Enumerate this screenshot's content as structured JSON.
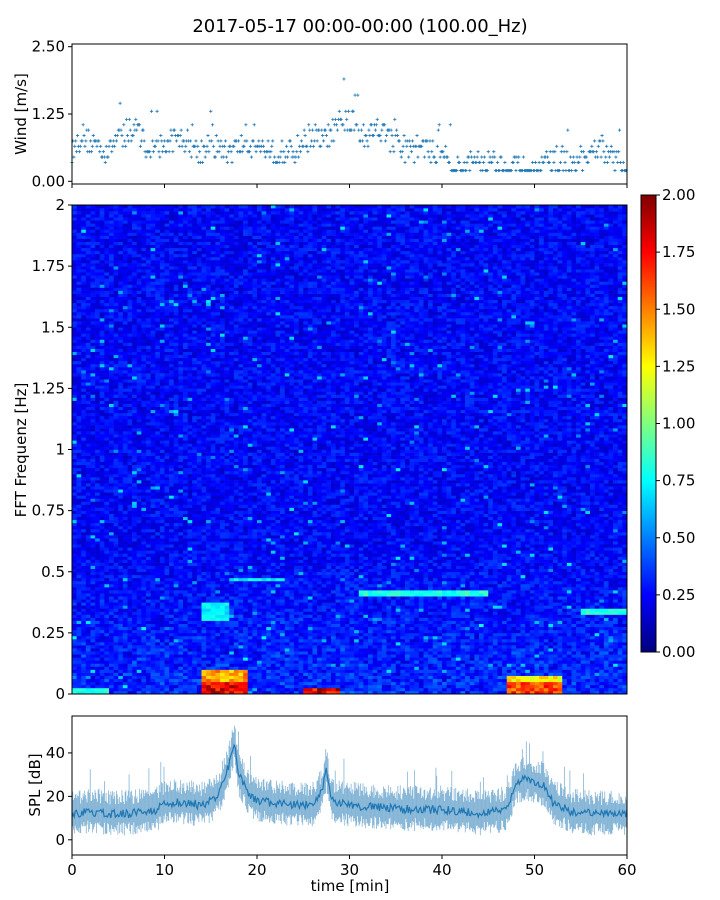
{
  "title": "2017-05-17 00:00-00:00 (100.00_Hz)",
  "colors": {
    "series": "#1f77b4",
    "frame": "#000000"
  },
  "chart_data": [
    {
      "id": "wind",
      "type": "scatter",
      "ylabel": "Wind [m/s]",
      "xlim": [
        0,
        60
      ],
      "ylim": [
        -0.05,
        2.55
      ],
      "y_ticks": [
        0.0,
        1.25,
        2.5
      ],
      "y_tick_labels": [
        "0.00",
        "1.25",
        "2.50"
      ],
      "x_ticks": [
        0,
        10,
        20,
        30,
        40,
        50,
        60
      ],
      "x_tick_labels_shown": false,
      "series": [
        {
          "marker": "+",
          "color": "#1f77b4",
          "x": [
            0,
            1,
            2,
            3,
            4,
            5,
            6,
            7,
            8,
            9,
            10,
            11,
            12,
            13,
            14,
            15,
            16,
            17,
            18,
            19,
            20,
            21,
            22,
            23,
            24,
            25,
            26,
            27,
            28,
            29,
            30,
            31,
            32,
            33,
            34,
            35,
            36,
            37,
            38,
            39,
            40,
            41,
            42,
            43,
            44,
            45,
            46,
            47,
            48,
            49,
            50,
            51,
            52,
            53,
            54,
            55,
            56,
            57,
            58,
            59,
            60
          ],
          "y": [
            0.7,
            1.0,
            0.9,
            0.8,
            0.7,
            1.0,
            0.9,
            1.2,
            0.8,
            0.75,
            0.8,
            0.9,
            0.95,
            0.85,
            0.7,
            0.8,
            0.75,
            0.7,
            0.8,
            0.85,
            0.8,
            0.75,
            0.7,
            0.65,
            0.7,
            0.9,
            1.0,
            0.9,
            1.0,
            1.2,
            1.3,
            1.1,
            1.0,
            1.2,
            1.0,
            0.8,
            0.7,
            0.75,
            0.8,
            0.7,
            0.75,
            0.5,
            0.35,
            0.45,
            0.55,
            0.5,
            0.45,
            0.4,
            0.45,
            0.35,
            0.3,
            0.45,
            0.5,
            0.55,
            0.45,
            0.5,
            0.55,
            0.9,
            0.6,
            0.5,
            0.4
          ]
        }
      ]
    },
    {
      "id": "spectrogram",
      "type": "heatmap",
      "ylabel": "FFT Frequenz [Hz]",
      "xlim": [
        0,
        60
      ],
      "ylim": [
        0,
        2
      ],
      "y_ticks": [
        0,
        0.25,
        0.5,
        0.75,
        1,
        1.25,
        1.5,
        1.75,
        2
      ],
      "y_tick_labels": [
        "0",
        "0.25",
        "0.5",
        "0.75",
        "1",
        "1.25",
        "1.5",
        "1.75",
        "2"
      ],
      "colormap": "jet",
      "colorbar": {
        "range": [
          0,
          2
        ],
        "ticks": [
          0,
          0.25,
          0.5,
          0.75,
          1,
          1.25,
          1.5,
          1.75,
          2
        ],
        "tick_labels": [
          "0.00",
          "0.25",
          "0.50",
          "0.75",
          "1.00",
          "1.25",
          "1.50",
          "1.75",
          "2.00"
        ]
      },
      "background_level": 0.25,
      "hotspots": [
        {
          "t_start": 0,
          "t_end": 4,
          "f_start": 0,
          "f_end": 0.03,
          "value": 0.9
        },
        {
          "t_start": 14,
          "t_end": 19,
          "f_start": 0,
          "f_end": 0.05,
          "value": 2.0
        },
        {
          "t_start": 14,
          "t_end": 19,
          "f_start": 0.05,
          "f_end": 0.1,
          "value": 1.6
        },
        {
          "t_start": 14,
          "t_end": 17,
          "f_start": 0.3,
          "f_end": 0.38,
          "value": 0.8
        },
        {
          "t_start": 25,
          "t_end": 29,
          "f_start": 0,
          "f_end": 0.03,
          "value": 2.0
        },
        {
          "t_start": 47,
          "t_end": 53,
          "f_start": 0,
          "f_end": 0.05,
          "value": 1.8
        },
        {
          "t_start": 47,
          "t_end": 53,
          "f_start": 0.05,
          "f_end": 0.08,
          "value": 1.4
        },
        {
          "t_start": 31,
          "t_end": 45,
          "f_start": 0.4,
          "f_end": 0.43,
          "value": 0.9
        },
        {
          "t_start": 17,
          "t_end": 23,
          "f_start": 0.46,
          "f_end": 0.48,
          "value": 0.8
        },
        {
          "t_start": 55,
          "t_end": 60,
          "f_start": 0.33,
          "f_end": 0.35,
          "value": 0.9
        }
      ]
    },
    {
      "id": "spl",
      "type": "line",
      "ylabel": "SPL [dB]",
      "xlabel": "time [min]",
      "xlim": [
        0,
        60
      ],
      "ylim": [
        -7,
        57
      ],
      "y_ticks": [
        0,
        20,
        40
      ],
      "y_tick_labels": [
        "0",
        "20",
        "40"
      ],
      "x_ticks": [
        0,
        10,
        20,
        30,
        40,
        50,
        60
      ],
      "x_tick_labels": [
        "0",
        "10",
        "20",
        "30",
        "40",
        "50",
        "60"
      ],
      "series": [
        {
          "color": "#1f77b4",
          "x": [
            0,
            2,
            4,
            6,
            8,
            9,
            10,
            12,
            14,
            15,
            16,
            17,
            17.5,
            18,
            19,
            20,
            22,
            24,
            26,
            27,
            27.5,
            28,
            30,
            32,
            34,
            36,
            38,
            40,
            42,
            44,
            46,
            47,
            48,
            49,
            50,
            51,
            52,
            54,
            56,
            58,
            60
          ],
          "y": [
            12,
            13,
            12,
            12,
            13,
            13,
            17,
            17,
            16,
            18,
            22,
            35,
            45,
            30,
            22,
            18,
            17,
            16,
            16,
            22,
            33,
            18,
            16,
            15,
            15,
            14,
            14,
            14,
            13,
            12,
            13,
            14,
            26,
            28,
            27,
            25,
            17,
            13,
            12,
            12,
            12
          ]
        }
      ]
    }
  ]
}
